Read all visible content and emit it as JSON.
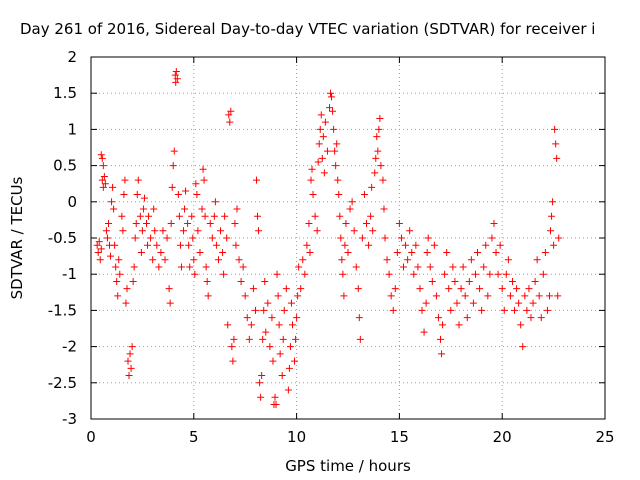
{
  "chart_data": {
    "type": "scatter",
    "title": "Day 261 of 2016, Sidereal Day-to-day VTEC variation (SDTVAR) for receiver i",
    "xlabel": "GPS time / hours",
    "ylabel": "SDTVAR / TECUs",
    "xlim": [
      0,
      25
    ],
    "ylim": [
      -3,
      2
    ],
    "xticks": [
      "0",
      "5",
      "10",
      "15",
      "20",
      "25"
    ],
    "yticks": [
      "2",
      "1.5",
      "1",
      "0.5",
      "0",
      "-0.5",
      "-1",
      "-1.5",
      "-2",
      "-2.5",
      "-3"
    ],
    "grid": true,
    "marker": "+",
    "series": [
      {
        "color": "#ff0000",
        "points": [
          [
            0.3,
            -0.6
          ],
          [
            0.35,
            -0.7
          ],
          [
            0.4,
            -0.55
          ],
          [
            0.45,
            -0.8
          ],
          [
            0.5,
            -0.65
          ],
          [
            0.5,
            0.65
          ],
          [
            0.55,
            0.6
          ],
          [
            0.55,
            0.3
          ],
          [
            0.6,
            0.5
          ],
          [
            0.6,
            0.2
          ],
          [
            0.65,
            0.35
          ],
          [
            0.7,
            0.25
          ],
          [
            0.75,
            -0.4
          ],
          [
            0.8,
            -0.5
          ],
          [
            0.85,
            -0.3
          ],
          [
            0.9,
            -0.6
          ],
          [
            0.95,
            -0.75
          ],
          [
            1.0,
            0.0
          ],
          [
            1.05,
            0.2
          ],
          [
            1.1,
            -0.1
          ],
          [
            1.15,
            -0.6
          ],
          [
            1.2,
            -0.9
          ],
          [
            1.25,
            -1.1
          ],
          [
            1.3,
            -1.3
          ],
          [
            1.35,
            -0.8
          ],
          [
            1.4,
            -1.0
          ],
          [
            1.5,
            -0.2
          ],
          [
            1.55,
            -0.4
          ],
          [
            1.6,
            0.1
          ],
          [
            1.65,
            0.3
          ],
          [
            1.7,
            -1.4
          ],
          [
            1.75,
            -1.2
          ],
          [
            1.8,
            -2.2
          ],
          [
            1.85,
            -2.4
          ],
          [
            1.9,
            -2.1
          ],
          [
            1.95,
            -2.3
          ],
          [
            2.0,
            -2.0
          ],
          [
            2.05,
            -1.1
          ],
          [
            2.1,
            -0.9
          ],
          [
            2.15,
            -0.5
          ],
          [
            2.2,
            -0.3
          ],
          [
            2.25,
            0.1
          ],
          [
            2.3,
            0.3
          ],
          [
            2.4,
            -0.2
          ],
          [
            2.45,
            -0.7
          ],
          [
            2.5,
            -0.4
          ],
          [
            2.55,
            -0.1
          ],
          [
            2.6,
            0.05
          ],
          [
            2.7,
            -0.3
          ],
          [
            2.75,
            -0.6
          ],
          [
            2.8,
            -0.2
          ],
          [
            2.9,
            -0.5
          ],
          [
            3.0,
            -0.8
          ],
          [
            3.05,
            -0.1
          ],
          [
            3.1,
            -0.4
          ],
          [
            3.2,
            -0.6
          ],
          [
            3.3,
            -0.9
          ],
          [
            3.4,
            -0.7
          ],
          [
            3.5,
            -0.4
          ],
          [
            3.6,
            -0.8
          ],
          [
            3.7,
            -0.5
          ],
          [
            3.8,
            -1.2
          ],
          [
            3.85,
            -1.4
          ],
          [
            3.9,
            -0.3
          ],
          [
            3.95,
            0.2
          ],
          [
            4.0,
            0.5
          ],
          [
            4.05,
            0.7
          ],
          [
            4.1,
            1.75
          ],
          [
            4.12,
            1.65
          ],
          [
            4.15,
            1.8
          ],
          [
            4.2,
            1.7
          ],
          [
            4.25,
            0.1
          ],
          [
            4.3,
            -0.2
          ],
          [
            4.35,
            -0.6
          ],
          [
            4.4,
            -0.9
          ],
          [
            4.5,
            -0.4
          ],
          [
            4.55,
            -0.1
          ],
          [
            4.6,
            0.15
          ],
          [
            4.7,
            -0.3
          ],
          [
            4.75,
            -0.6
          ],
          [
            4.8,
            -0.9
          ],
          [
            4.9,
            -0.2
          ],
          [
            4.95,
            -0.5
          ],
          [
            5.0,
            -0.8
          ],
          [
            5.05,
            -1.0
          ],
          [
            5.1,
            0.25
          ],
          [
            5.15,
            0.1
          ],
          [
            5.2,
            -0.4
          ],
          [
            5.3,
            -0.7
          ],
          [
            5.4,
            -0.1
          ],
          [
            5.45,
            0.45
          ],
          [
            5.5,
            0.3
          ],
          [
            5.55,
            -0.2
          ],
          [
            5.6,
            -0.9
          ],
          [
            5.65,
            -1.1
          ],
          [
            5.7,
            -1.3
          ],
          [
            5.8,
            -0.3
          ],
          [
            5.9,
            -0.5
          ],
          [
            6.0,
            -0.2
          ],
          [
            6.05,
            0.0
          ],
          [
            6.1,
            -0.6
          ],
          [
            6.2,
            -0.8
          ],
          [
            6.3,
            -0.4
          ],
          [
            6.4,
            -0.7
          ],
          [
            6.45,
            -1.0
          ],
          [
            6.5,
            -0.2
          ],
          [
            6.6,
            -0.5
          ],
          [
            6.65,
            -1.7
          ],
          [
            6.7,
            1.2
          ],
          [
            6.75,
            1.1
          ],
          [
            6.8,
            1.25
          ],
          [
            6.85,
            -2.0
          ],
          [
            6.9,
            -2.2
          ],
          [
            6.95,
            -1.9
          ],
          [
            7.0,
            -0.3
          ],
          [
            7.05,
            -0.6
          ],
          [
            7.1,
            -0.1
          ],
          [
            7.2,
            -0.8
          ],
          [
            7.3,
            -1.1
          ],
          [
            7.4,
            -0.9
          ],
          [
            7.5,
            -1.3
          ],
          [
            7.6,
            -1.6
          ],
          [
            7.7,
            -1.9
          ],
          [
            7.8,
            -1.7
          ],
          [
            7.9,
            -1.2
          ],
          [
            8.0,
            -1.5
          ],
          [
            8.05,
            0.3
          ],
          [
            8.1,
            -0.2
          ],
          [
            8.15,
            -0.4
          ],
          [
            8.2,
            -2.5
          ],
          [
            8.25,
            -2.7
          ],
          [
            8.3,
            -2.4
          ],
          [
            8.35,
            -1.9
          ],
          [
            8.4,
            -1.5
          ],
          [
            8.45,
            -1.1
          ],
          [
            8.5,
            -1.8
          ],
          [
            8.6,
            -1.4
          ],
          [
            8.7,
            -2.0
          ],
          [
            8.8,
            -1.6
          ],
          [
            8.85,
            -2.2
          ],
          [
            8.9,
            -2.8
          ],
          [
            8.95,
            -2.7
          ],
          [
            9.0,
            -2.8
          ],
          [
            9.05,
            -1.0
          ],
          [
            9.1,
            -1.3
          ],
          [
            9.15,
            -1.7
          ],
          [
            9.2,
            -2.1
          ],
          [
            9.3,
            -2.4
          ],
          [
            9.35,
            -1.9
          ],
          [
            9.4,
            -1.5
          ],
          [
            9.5,
            -1.2
          ],
          [
            9.6,
            -2.6
          ],
          [
            9.65,
            -2.3
          ],
          [
            9.7,
            -2.0
          ],
          [
            9.75,
            -1.4
          ],
          [
            9.8,
            -1.7
          ],
          [
            9.9,
            -2.2
          ],
          [
            9.95,
            -1.9
          ],
          [
            10.0,
            -1.6
          ],
          [
            10.05,
            -1.3
          ],
          [
            10.1,
            -0.9
          ],
          [
            10.2,
            -1.2
          ],
          [
            10.3,
            -0.8
          ],
          [
            10.4,
            -1.0
          ],
          [
            10.5,
            -0.6
          ],
          [
            10.6,
            -0.3
          ],
          [
            10.65,
            -0.7
          ],
          [
            10.7,
            0.3
          ],
          [
            10.75,
            0.45
          ],
          [
            10.8,
            0.1
          ],
          [
            10.9,
            -0.2
          ],
          [
            11.0,
            -0.4
          ],
          [
            11.05,
            0.55
          ],
          [
            11.1,
            0.8
          ],
          [
            11.15,
            1.0
          ],
          [
            11.2,
            1.2
          ],
          [
            11.25,
            0.6
          ],
          [
            11.3,
            0.9
          ],
          [
            11.35,
            0.4
          ],
          [
            11.4,
            1.1
          ],
          [
            11.5,
            0.7
          ],
          [
            11.6,
            1.3
          ],
          [
            11.65,
            1.5
          ],
          [
            11.7,
            1.45
          ],
          [
            11.75,
            1.25
          ],
          [
            11.8,
            1.0
          ],
          [
            11.85,
            0.7
          ],
          [
            11.9,
            0.5
          ],
          [
            11.95,
            0.8
          ],
          [
            12.0,
            0.3
          ],
          [
            12.05,
            0.1
          ],
          [
            12.1,
            -0.2
          ],
          [
            12.15,
            -0.5
          ],
          [
            12.2,
            -0.8
          ],
          [
            12.25,
            -1.0
          ],
          [
            12.3,
            -1.3
          ],
          [
            12.35,
            -0.6
          ],
          [
            12.4,
            -0.3
          ],
          [
            12.5,
            -0.7
          ],
          [
            12.6,
            -0.1
          ],
          [
            12.7,
            0.0
          ],
          [
            12.8,
            -0.4
          ],
          [
            12.9,
            -0.9
          ],
          [
            13.0,
            -1.2
          ],
          [
            13.05,
            -1.6
          ],
          [
            13.1,
            -1.9
          ],
          [
            13.2,
            -0.5
          ],
          [
            13.3,
            0.1
          ],
          [
            13.4,
            -0.3
          ],
          [
            13.5,
            -0.6
          ],
          [
            13.6,
            -0.2
          ],
          [
            13.65,
            0.2
          ],
          [
            13.7,
            -0.4
          ],
          [
            13.8,
            0.4
          ],
          [
            13.85,
            0.6
          ],
          [
            13.9,
            0.9
          ],
          [
            13.95,
            0.7
          ],
          [
            14.0,
            1.0
          ],
          [
            14.05,
            1.15
          ],
          [
            14.1,
            0.5
          ],
          [
            14.2,
            0.3
          ],
          [
            14.25,
            -0.1
          ],
          [
            14.3,
            -0.5
          ],
          [
            14.4,
            -0.8
          ],
          [
            14.5,
            -1.0
          ],
          [
            14.6,
            -1.3
          ],
          [
            14.7,
            -1.5
          ],
          [
            14.8,
            -1.2
          ],
          [
            14.9,
            -0.7
          ],
          [
            15.0,
            -0.3
          ],
          [
            15.1,
            -0.5
          ],
          [
            15.2,
            -0.9
          ],
          [
            15.3,
            -0.6
          ],
          [
            15.4,
            -0.8
          ],
          [
            15.5,
            -0.4
          ],
          [
            15.6,
            -0.7
          ],
          [
            15.7,
            -1.0
          ],
          [
            15.8,
            -0.6
          ],
          [
            15.9,
            -0.9
          ],
          [
            16.0,
            -1.2
          ],
          [
            16.1,
            -1.5
          ],
          [
            16.2,
            -1.8
          ],
          [
            16.3,
            -1.4
          ],
          [
            16.35,
            -0.7
          ],
          [
            16.4,
            -0.5
          ],
          [
            16.5,
            -0.9
          ],
          [
            16.6,
            -1.1
          ],
          [
            16.7,
            -0.6
          ],
          [
            16.8,
            -1.3
          ],
          [
            16.9,
            -1.6
          ],
          [
            17.0,
            -1.9
          ],
          [
            17.05,
            -2.1
          ],
          [
            17.1,
            -1.7
          ],
          [
            17.2,
            -1.0
          ],
          [
            17.3,
            -0.7
          ],
          [
            17.4,
            -1.2
          ],
          [
            17.5,
            -1.5
          ],
          [
            17.6,
            -0.9
          ],
          [
            17.7,
            -1.1
          ],
          [
            17.8,
            -1.4
          ],
          [
            17.9,
            -1.7
          ],
          [
            18.0,
            -1.2
          ],
          [
            18.1,
            -0.9
          ],
          [
            18.2,
            -1.3
          ],
          [
            18.3,
            -1.6
          ],
          [
            18.4,
            -1.1
          ],
          [
            18.5,
            -0.8
          ],
          [
            18.6,
            -1.4
          ],
          [
            18.7,
            -1.0
          ],
          [
            18.8,
            -0.7
          ],
          [
            18.9,
            -1.2
          ],
          [
            19.0,
            -1.5
          ],
          [
            19.1,
            -0.9
          ],
          [
            19.2,
            -0.6
          ],
          [
            19.3,
            -1.3
          ],
          [
            19.4,
            -1.0
          ],
          [
            19.5,
            -0.5
          ],
          [
            19.6,
            -0.3
          ],
          [
            19.7,
            -0.7
          ],
          [
            19.8,
            -1.0
          ],
          [
            19.9,
            -0.6
          ],
          [
            20.0,
            -1.2
          ],
          [
            20.1,
            -1.5
          ],
          [
            20.2,
            -1.0
          ],
          [
            20.3,
            -0.8
          ],
          [
            20.4,
            -1.3
          ],
          [
            20.5,
            -1.1
          ],
          [
            20.6,
            -1.5
          ],
          [
            20.7,
            -1.2
          ],
          [
            20.8,
            -1.4
          ],
          [
            20.9,
            -1.7
          ],
          [
            21.0,
            -2.0
          ],
          [
            21.1,
            -1.3
          ],
          [
            21.2,
            -1.5
          ],
          [
            21.3,
            -1.2
          ],
          [
            21.4,
            -1.6
          ],
          [
            21.5,
            -1.4
          ],
          [
            21.6,
            -1.1
          ],
          [
            21.7,
            -0.8
          ],
          [
            21.8,
            -1.3
          ],
          [
            21.9,
            -1.6
          ],
          [
            22.0,
            -1.0
          ],
          [
            22.1,
            -0.7
          ],
          [
            22.2,
            -1.5
          ],
          [
            22.3,
            -1.3
          ],
          [
            22.35,
            -0.4
          ],
          [
            22.4,
            -0.2
          ],
          [
            22.45,
            0.0
          ],
          [
            22.5,
            -0.6
          ],
          [
            22.55,
            1.0
          ],
          [
            22.6,
            0.8
          ],
          [
            22.65,
            0.6
          ],
          [
            22.7,
            -1.3
          ],
          [
            22.75,
            -0.5
          ]
        ]
      }
    ]
  }
}
